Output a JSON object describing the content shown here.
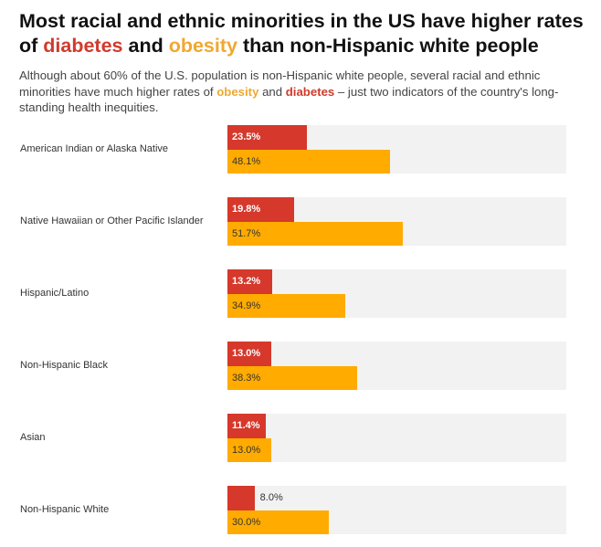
{
  "title": {
    "part1": "Most racial and ethnic minorities in the US have higher rates of ",
    "diabetes": "diabetes",
    "and": " and ",
    "obesity": "obesity",
    "part2": " than non-Hispanic white people"
  },
  "subtitle": {
    "part1": "Although about 60% of the U.S. population is non-Hispanic white people, several racial and ethnic minorities have much higher rates of ",
    "obesity": "obesity",
    "and": " and ",
    "diabetes": "diabetes",
    "part2": " – just two indicators of the country's long-standing health inequities."
  },
  "colors": {
    "diabetes": "#d6382b",
    "obesity": "#ffab00",
    "track": "#f2f2f2"
  },
  "chart_data": {
    "type": "bar",
    "orientation": "horizontal",
    "xlim": [
      0,
      100
    ],
    "categories": [
      "American Indian or Alaska Native",
      "Native Hawaiian or Other Pacific Islander",
      "Hispanic/Latino",
      "Non-Hispanic Black",
      "Asian",
      "Non-Hispanic White"
    ],
    "series": [
      {
        "name": "diabetes",
        "values": [
          23.5,
          19.8,
          13.2,
          13.0,
          11.4,
          8.0
        ],
        "labels": [
          "23.5%",
          "19.8%",
          "13.2%",
          "13.0%",
          "11.4%",
          "8.0%"
        ]
      },
      {
        "name": "obesity",
        "values": [
          48.1,
          51.7,
          34.9,
          38.3,
          13.0,
          30.0
        ],
        "labels": [
          "48.1%",
          "51.7%",
          "34.9%",
          "38.3%",
          "13.0%",
          "30.0%"
        ]
      }
    ]
  }
}
